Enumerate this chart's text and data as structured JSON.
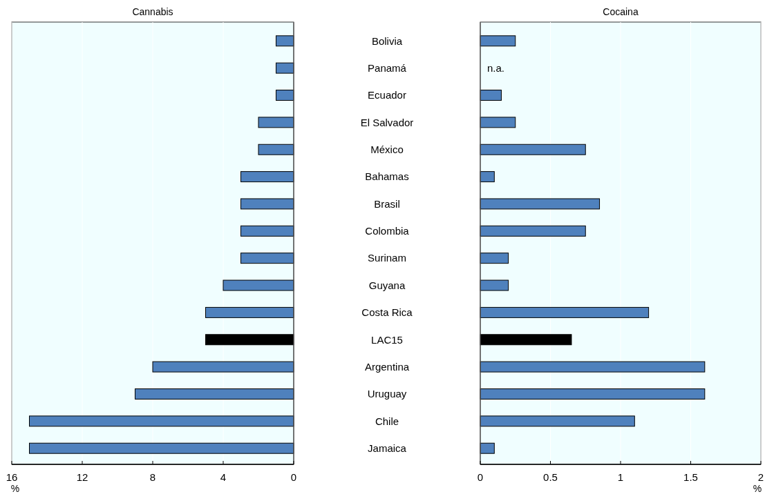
{
  "chart_data": [
    {
      "type": "bar",
      "orientation": "horizontal",
      "title": "Cannabis",
      "xlabel": "%",
      "categories": [
        "Bolivia",
        "Panamá",
        "Ecuador",
        "El Salvador",
        "México",
        "Bahamas",
        "Brasil",
        "Colombia",
        "Surinam",
        "Guyana",
        "Costa Rica",
        "LAC15",
        "Argentina",
        "Uruguay",
        "Chile",
        "Jamaica"
      ],
      "values": [
        1,
        1,
        1,
        2,
        2,
        3,
        3,
        3,
        3,
        4,
        5,
        5,
        8,
        9,
        15,
        15
      ],
      "colors": [
        "#4f81bd",
        "#4f81bd",
        "#4f81bd",
        "#4f81bd",
        "#4f81bd",
        "#4f81bd",
        "#4f81bd",
        "#4f81bd",
        "#4f81bd",
        "#4f81bd",
        "#4f81bd",
        "#000000",
        "#4f81bd",
        "#4f81bd",
        "#4f81bd",
        "#4f81bd"
      ],
      "xlim": [
        16,
        0
      ],
      "xticks": [
        16,
        12,
        8,
        4,
        0
      ],
      "grid": "x"
    },
    {
      "type": "bar",
      "orientation": "horizontal",
      "title": "Cocaina",
      "xlabel": "%",
      "tick_labels": "x",
      "values": [
        0.25,
        null,
        0.15,
        0.25,
        0.75,
        0.1,
        0.85,
        0.75,
        0.2,
        0.2,
        1.2,
        0.65,
        1.6,
        1.6,
        1.1,
        0.1
      ],
      "colors": [
        "#4f81bd",
        null,
        "#4f81bd",
        "#4f81bd",
        "#4f81bd",
        "#4f81bd",
        "#4f81bd",
        "#4f81bd",
        "#4f81bd",
        "#4f81bd",
        "#4f81bd",
        "#000000",
        "#4f81bd",
        "#4f81bd",
        "#4f81bd",
        "#4f81bd"
      ],
      "xlim": [
        0,
        2
      ],
      "xticks": [
        0,
        0.5,
        1,
        1.5,
        2
      ],
      "grid": "x",
      "annotations": [
        "n.a."
      ]
    }
  ]
}
